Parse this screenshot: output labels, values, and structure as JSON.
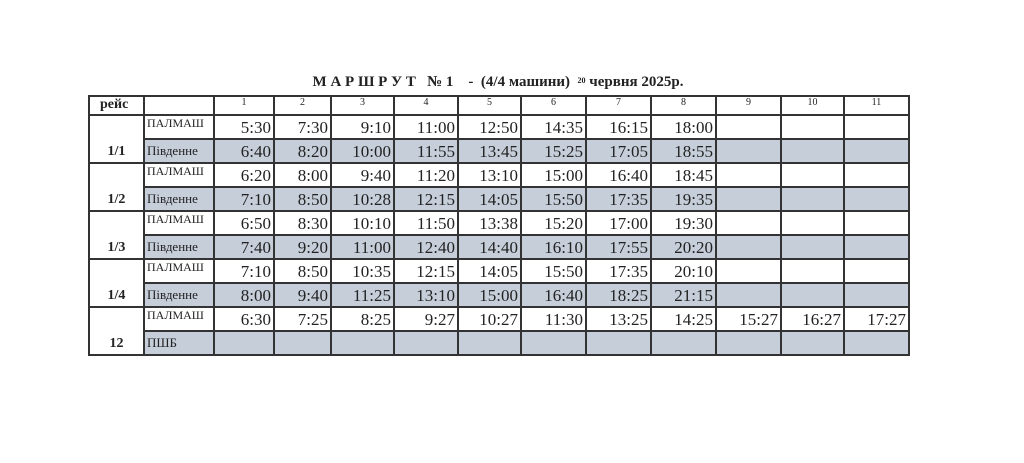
{
  "header": {
    "title": "М А Р Ш Р У Т   № 1",
    "subtitle": "-  (4/4 машини)",
    "day": "20",
    "date": "червня 2025р."
  },
  "table": {
    "reys_header": "рейс",
    "columns": [
      "1",
      "2",
      "3",
      "4",
      "5",
      "6",
      "7",
      "8",
      "9",
      "10",
      "11"
    ],
    "groups": [
      {
        "reys": "1/1",
        "rows": [
          {
            "stop": "ПАЛМАШ",
            "times": [
              "5:30",
              "7:30",
              "9:10",
              "11:00",
              "12:50",
              "14:35",
              "16:15",
              "18:00"
            ]
          },
          {
            "stop": "Південне",
            "times": [
              "6:40",
              "8:20",
              "10:00",
              "11:55",
              "13:45",
              "15:25",
              "17:05",
              "18:55"
            ]
          }
        ]
      },
      {
        "reys": "1/2",
        "rows": [
          {
            "stop": "ПАЛМАШ",
            "times": [
              "6:20",
              "8:00",
              "9:40",
              "11:20",
              "13:10",
              "15:00",
              "16:40",
              "18:45"
            ]
          },
          {
            "stop": "Південне",
            "times": [
              "7:10",
              "8:50",
              "10:28",
              "12:15",
              "14:05",
              "15:50",
              "17:35",
              "19:35"
            ]
          }
        ]
      },
      {
        "reys": "1/3",
        "rows": [
          {
            "stop": "ПАЛМАШ",
            "times": [
              "6:50",
              "8:30",
              "10:10",
              "11:50",
              "13:38",
              "15:20",
              "17:00",
              "19:30"
            ]
          },
          {
            "stop": "Південне",
            "times": [
              "7:40",
              "9:20",
              "11:00",
              "12:40",
              "14:40",
              "16:10",
              "17:55",
              "20:20"
            ]
          }
        ]
      },
      {
        "reys": "1/4",
        "rows": [
          {
            "stop": "ПАЛМАШ",
            "times": [
              "7:10",
              "8:50",
              "10:35",
              "12:15",
              "14:05",
              "15:50",
              "17:35",
              "20:10"
            ]
          },
          {
            "stop": "Південне",
            "times": [
              "8:00",
              "9:40",
              "11:25",
              "13:10",
              "15:00",
              "16:40",
              "18:25",
              "21:15"
            ]
          }
        ]
      },
      {
        "reys": "12",
        "rows": [
          {
            "stop": "ПАЛМАШ",
            "times": [
              "6:30",
              "7:25",
              "8:25",
              "9:27",
              "10:27",
              "11:30",
              "13:25",
              "14:25",
              "15:27",
              "16:27",
              "17:27"
            ]
          },
          {
            "stop": "ПШБ",
            "times": []
          }
        ]
      }
    ]
  }
}
